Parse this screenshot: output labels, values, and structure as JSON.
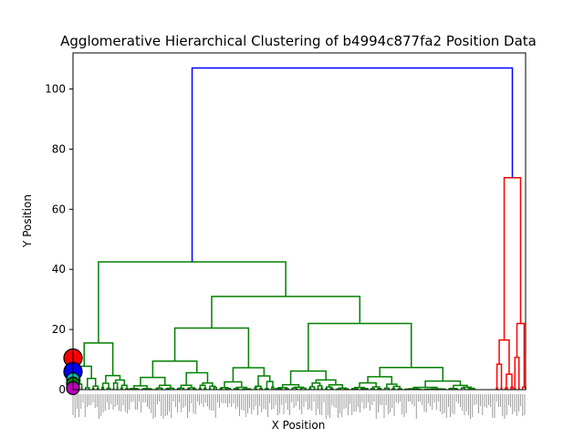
{
  "chart_data": {
    "type": "dendrogram",
    "title": "Agglomerative Hierarchical Clustering of b4994c877fa2 Position Data",
    "xlabel": "X Position",
    "ylabel": "Y Position",
    "ylim": [
      0,
      112
    ],
    "yticks": [
      0,
      20,
      40,
      60,
      80,
      100
    ],
    "grid": false,
    "legend": "none",
    "colors": {
      "link_above_threshold": "#0000ff",
      "cluster_1": "#008000",
      "cluster_2": "#ff0000",
      "axis": "#000000"
    },
    "clusters": [
      {
        "color": "cluster_1",
        "merge_height": 42.5,
        "subclusters": [
          {
            "merge_height": 15.5,
            "note_color": "cluster_1"
          },
          {
            "merge_height": 31.0,
            "children_heights": [
              20.5,
              22.0,
              16.5,
              11.0,
              10.0
            ]
          }
        ]
      },
      {
        "color": "cluster_2",
        "merge_height": 70.5,
        "children_heights": [
          16.5,
          22.0,
          7.5,
          8.0,
          5.5
        ]
      }
    ],
    "root_merge_height": 107.0,
    "scatter_overlay": [
      {
        "y": 10.5,
        "color": "#ff0000",
        "size": "large"
      },
      {
        "y": 6.0,
        "color": "#0000ff",
        "size": "large"
      },
      {
        "y": 3.5,
        "color": "#00bfbf",
        "size": "medium"
      },
      {
        "y": 2.0,
        "color": "#008000",
        "size": "medium"
      },
      {
        "y": 0.5,
        "color": "#bf00bf",
        "size": "medium"
      }
    ]
  }
}
